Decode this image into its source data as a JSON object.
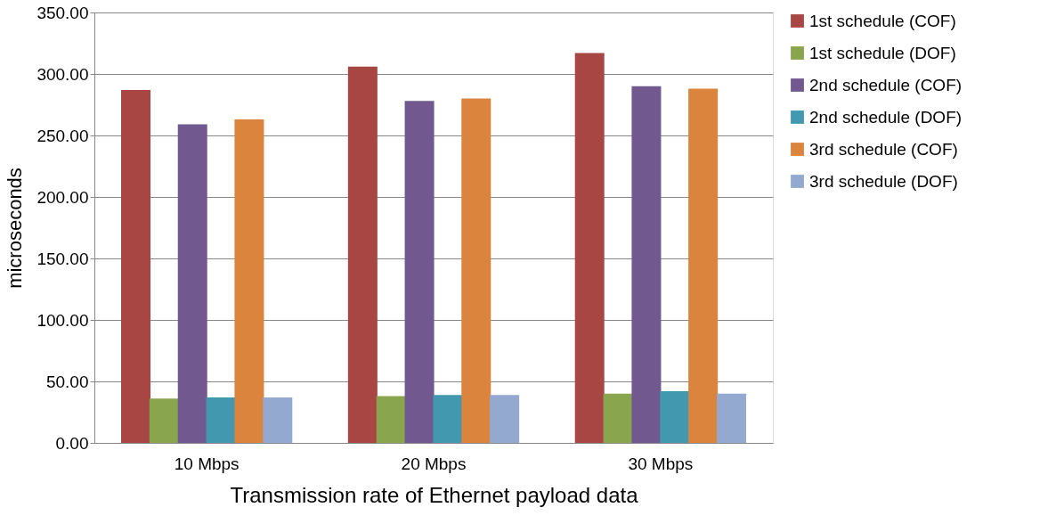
{
  "chart_data": {
    "type": "bar",
    "xlabel": "Transmission rate of Ethernet payload data",
    "ylabel": "microseconds",
    "categories": [
      "10 Mbps",
      "20 Mbps",
      "30 Mbps"
    ],
    "series": [
      {
        "name": "1st schedule (COF)",
        "color": "#a84644",
        "values": [
          287,
          306,
          317
        ]
      },
      {
        "name": "1st schedule (DOF)",
        "color": "#89a54e",
        "values": [
          36,
          38,
          40
        ]
      },
      {
        "name": "2nd schedule (COF)",
        "color": "#71588f",
        "values": [
          259,
          278,
          290
        ]
      },
      {
        "name": "2nd schedule (DOF)",
        "color": "#4198af",
        "values": [
          37,
          39,
          42
        ]
      },
      {
        "name": "3rd schedule (COF)",
        "color": "#db843d",
        "values": [
          263,
          280,
          288
        ]
      },
      {
        "name": "3rd schedule (DOF)",
        "color": "#93a9cf",
        "values": [
          37,
          39,
          40
        ]
      }
    ],
    "ylim": [
      0,
      350
    ],
    "yticks": [
      {
        "value": 0,
        "label": "0.00"
      },
      {
        "value": 50,
        "label": "50.00"
      },
      {
        "value": 100,
        "label": "100.00"
      },
      {
        "value": 150,
        "label": "150.00"
      },
      {
        "value": 200,
        "label": "200.00"
      },
      {
        "value": 250,
        "label": "250.00"
      },
      {
        "value": 300,
        "label": "300.00"
      },
      {
        "value": 350,
        "label": "350.00"
      }
    ],
    "grid": "y",
    "legend": "right"
  }
}
